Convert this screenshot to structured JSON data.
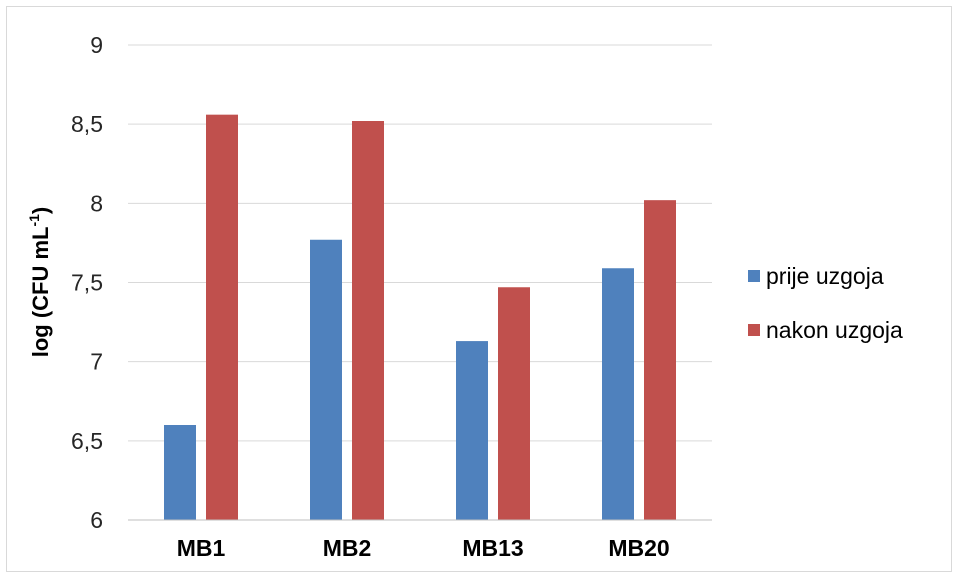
{
  "chart_data": {
    "type": "bar",
    "title": "",
    "ylabel": "log (CFU mL",
    "ylabel_superscript": "-1",
    "ylabel_close": ")",
    "xlabel": "",
    "categories": [
      "MB1",
      "MB2",
      "MB13",
      "MB20"
    ],
    "series": [
      {
        "name": "prije uzgoja",
        "color": "#4f81bd",
        "values": [
          6.6,
          7.77,
          7.13,
          7.59
        ]
      },
      {
        "name": "nakon uzgoja",
        "color": "#c0504d",
        "values": [
          8.56,
          8.52,
          7.47,
          8.02
        ]
      }
    ],
    "ylim": [
      6,
      9
    ],
    "yticks": [
      6,
      6.5,
      7,
      7.5,
      8,
      8.5,
      9
    ],
    "ytick_labels": [
      "6",
      "6,5",
      "7",
      "7,5",
      "8",
      "8,5",
      "9"
    ],
    "grid": true,
    "legend_position": "right"
  }
}
